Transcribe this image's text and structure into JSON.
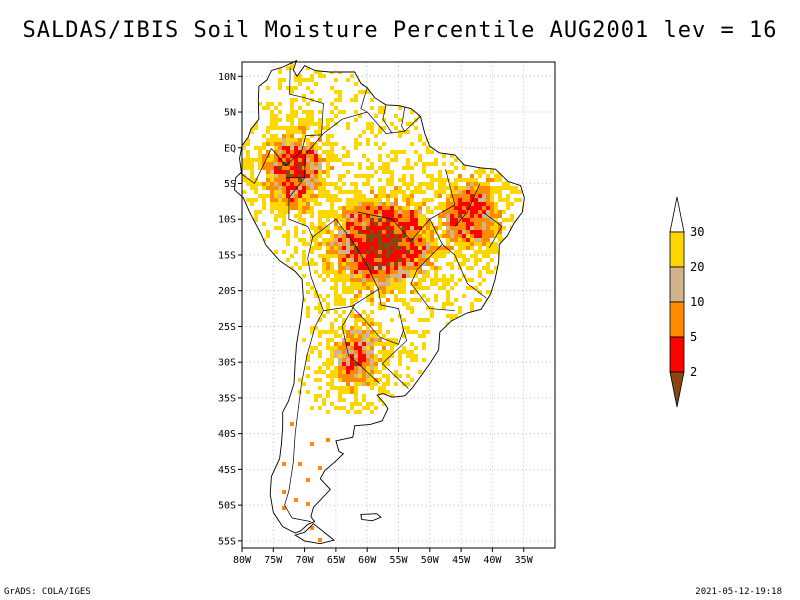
{
  "title": "SALDAS/IBIS Soil Moisture Percentile AUG2001 lev = 16",
  "footer_left": "GrADS: COLA/IGES",
  "footer_right": "2021-05-12-19:18",
  "map": {
    "region": "South America",
    "projection": "lat-lon",
    "lon_range": [
      -80,
      -30
    ],
    "lat_range": [
      -56,
      12
    ],
    "grid": true,
    "lat_ticks": [
      "10N",
      "5N",
      "EQ",
      "5S",
      "10S",
      "15S",
      "20S",
      "25S",
      "30S",
      "35S",
      "40S",
      "45S",
      "50S",
      "55S"
    ],
    "lat_values": [
      10,
      5,
      0,
      -5,
      -10,
      -15,
      -20,
      -25,
      -30,
      -35,
      -40,
      -45,
      -50,
      -55
    ],
    "lon_ticks": [
      "80W",
      "75W",
      "70W",
      "65W",
      "60W",
      "55W",
      "50W",
      "45W",
      "40W",
      "35W"
    ],
    "lon_values": [
      -80,
      -75,
      -70,
      -65,
      -60,
      -55,
      -50,
      -45,
      -40,
      -35
    ]
  },
  "colorbar": {
    "labels": [
      "2",
      "5",
      "10",
      "20",
      "30"
    ],
    "colors": [
      "#8b4513",
      "#ff0000",
      "#ff8c00",
      "#d2b48c",
      "#ffd700",
      "#ffffff"
    ]
  }
}
